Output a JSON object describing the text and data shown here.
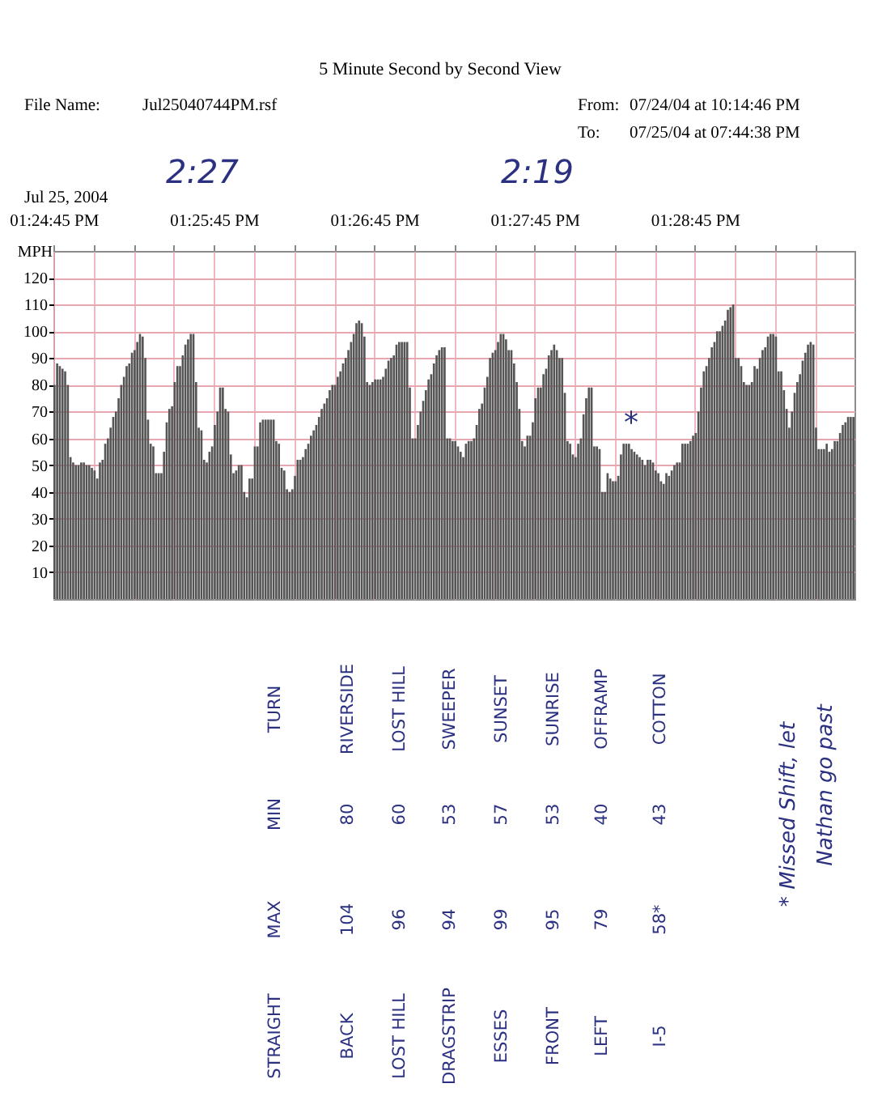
{
  "chart_data": {
    "type": "bar",
    "title": "5 Minute Second by Second View",
    "ylabel": "MPH",
    "categories": [
      "01:24:45 PM",
      null,
      null,
      null,
      null,
      null,
      null,
      null,
      null,
      null,
      null,
      null,
      null,
      null,
      null,
      null,
      null,
      null,
      null,
      null,
      null,
      null,
      null,
      null,
      null,
      null,
      null,
      null,
      null,
      null,
      null,
      null,
      null,
      null,
      null,
      null,
      null,
      null,
      null,
      null,
      null,
      null,
      null,
      null,
      null,
      null,
      null,
      null,
      null,
      null,
      null,
      null,
      null,
      null,
      null,
      null,
      null,
      null,
      null,
      null,
      "01:25:45 PM",
      null,
      null,
      null,
      null,
      null,
      null,
      null,
      null,
      null,
      null,
      null,
      null,
      null,
      null,
      null,
      null,
      null,
      null,
      null,
      null,
      null,
      null,
      null,
      null,
      null,
      null,
      null,
      null,
      null,
      null,
      null,
      null,
      null,
      null,
      null,
      null,
      null,
      null,
      null,
      null,
      null,
      null,
      null,
      null,
      null,
      null,
      null,
      null,
      null,
      null,
      null,
      null,
      null,
      null,
      null,
      null,
      null,
      null,
      null,
      "01:26:45 PM",
      null,
      null,
      null,
      null,
      null,
      null,
      null,
      null,
      null,
      null,
      null,
      null,
      null,
      null,
      null,
      null,
      null,
      null,
      null,
      null,
      null,
      null,
      null,
      null,
      null,
      null,
      null,
      null,
      null,
      null,
      null,
      null,
      null,
      null,
      null,
      null,
      null,
      null,
      null,
      null,
      null,
      null,
      null,
      null,
      null,
      null,
      null,
      null,
      null,
      null,
      null,
      null,
      null,
      null,
      null,
      null,
      null,
      null,
      null,
      "01:27:45 PM",
      null,
      null,
      null,
      null,
      null,
      null,
      null,
      null,
      null,
      null,
      null,
      null,
      null,
      null,
      null,
      null,
      null,
      null,
      null,
      null,
      null,
      null,
      null,
      null,
      null,
      null,
      null,
      null,
      null,
      null,
      null,
      null,
      null,
      null,
      null,
      null,
      null,
      null,
      null,
      null,
      null,
      null,
      null,
      null,
      null,
      null,
      null,
      null,
      null,
      null,
      null,
      null,
      null,
      null,
      null,
      null,
      null,
      null,
      null,
      "01:28:45 PM",
      null,
      null,
      null,
      null,
      null,
      null,
      null,
      null,
      null,
      null,
      null,
      null,
      null,
      null,
      null,
      null,
      null,
      null,
      null,
      null,
      null,
      null,
      null,
      null,
      null,
      null,
      null,
      null,
      null,
      null,
      null,
      null,
      null,
      null,
      null,
      null,
      null,
      null,
      null,
      null,
      null,
      null,
      null,
      null,
      null,
      null,
      null,
      null,
      null,
      null,
      null,
      null,
      null,
      null,
      null,
      null,
      null,
      null,
      null
    ],
    "series": [
      {
        "color": "#555555",
        "values": [
          80,
          88,
          87,
          86,
          85,
          80,
          53,
          51,
          50,
          50,
          51,
          51,
          50,
          50,
          49,
          48,
          45,
          51,
          52,
          58,
          60,
          64,
          68,
          70,
          75,
          80,
          83,
          87,
          88,
          92,
          93,
          96,
          99,
          98,
          90,
          67,
          58,
          57,
          47,
          47,
          47,
          55,
          66,
          71,
          72,
          81,
          87,
          87,
          91,
          95,
          97,
          99,
          99,
          81,
          64,
          63,
          52,
          51,
          55,
          57,
          65,
          70,
          79,
          79,
          71,
          70,
          54,
          47,
          48,
          50,
          50,
          40,
          38,
          45,
          45,
          57,
          57,
          66,
          67,
          67,
          67,
          67,
          67,
          59,
          58,
          49,
          48,
          41,
          40,
          41,
          46,
          52,
          52,
          53,
          56,
          58,
          61,
          63,
          65,
          68,
          71,
          73,
          75,
          78,
          80,
          80,
          83,
          85,
          88,
          90,
          93,
          96,
          99,
          103,
          104,
          103,
          98,
          81,
          80,
          81,
          82,
          82,
          82,
          83,
          86,
          89,
          90,
          91,
          95,
          96,
          96,
          96,
          96,
          79,
          60,
          60,
          65,
          70,
          74,
          78,
          82,
          84,
          88,
          91,
          93,
          94,
          94,
          60,
          60,
          59,
          59,
          57,
          55,
          53,
          58,
          59,
          59,
          60,
          65,
          71,
          73,
          79,
          83,
          90,
          92,
          93,
          96,
          99,
          99,
          97,
          93,
          93,
          88,
          81,
          71,
          59,
          57,
          61,
          61,
          66,
          75,
          79,
          79,
          84,
          86,
          91,
          93,
          95,
          93,
          90,
          90,
          77,
          59,
          58,
          54,
          53,
          58,
          60,
          69,
          75,
          79,
          79,
          57,
          57,
          56,
          40,
          40,
          47,
          45,
          44,
          44,
          46,
          54,
          58,
          58,
          58,
          56,
          55,
          54,
          53,
          52,
          50,
          52,
          52,
          51,
          48,
          47,
          44,
          43,
          47,
          46,
          48,
          50,
          51,
          51,
          58,
          58,
          58,
          59,
          61,
          62,
          70,
          79,
          85,
          87,
          90,
          94,
          96,
          100,
          100,
          102,
          104,
          108,
          109,
          110,
          90,
          90,
          87,
          81,
          80,
          80,
          81,
          87,
          86,
          90,
          93,
          94,
          98,
          99,
          99,
          98,
          85,
          85,
          78,
          71,
          64,
          70,
          77,
          81,
          84,
          89,
          92,
          95,
          96,
          95,
          64,
          56,
          56,
          56,
          58,
          55,
          56,
          59,
          59,
          62,
          65,
          66,
          68,
          68,
          68
        ]
      }
    ],
    "ylim": [
      0,
      130
    ],
    "yticks": [
      10,
      20,
      30,
      40,
      50,
      60,
      70,
      80,
      90,
      100,
      110,
      120
    ],
    "grid": true,
    "annotations": [
      "File Name:",
      "Jul25040744PM.rsf",
      "From:",
      "07/24/04 at 10:14:46 PM",
      "To:",
      "07/25/04 at 07:44:38 PM",
      "Jul 25, 2004",
      "2:27",
      "2:19",
      "*",
      "TURN",
      "MIN",
      "MAX",
      "STRAIGHT",
      "RIVERSIDE",
      "80",
      "104",
      "BACK",
      "LOST HILL",
      "60",
      "96",
      "LOST HILL",
      "SWEEPER",
      "53",
      "94",
      "DRAGSTRIP",
      "SUNSET",
      "57",
      "99",
      "ESSES",
      "SUNRISE",
      "53",
      "95",
      "FRONT",
      "OFFRAMP",
      "40",
      "79",
      "LEFT",
      "COTTON",
      "43",
      "58*",
      "I-5",
      "* Missed Shift, let",
      "Nathan go past"
    ]
  }
}
